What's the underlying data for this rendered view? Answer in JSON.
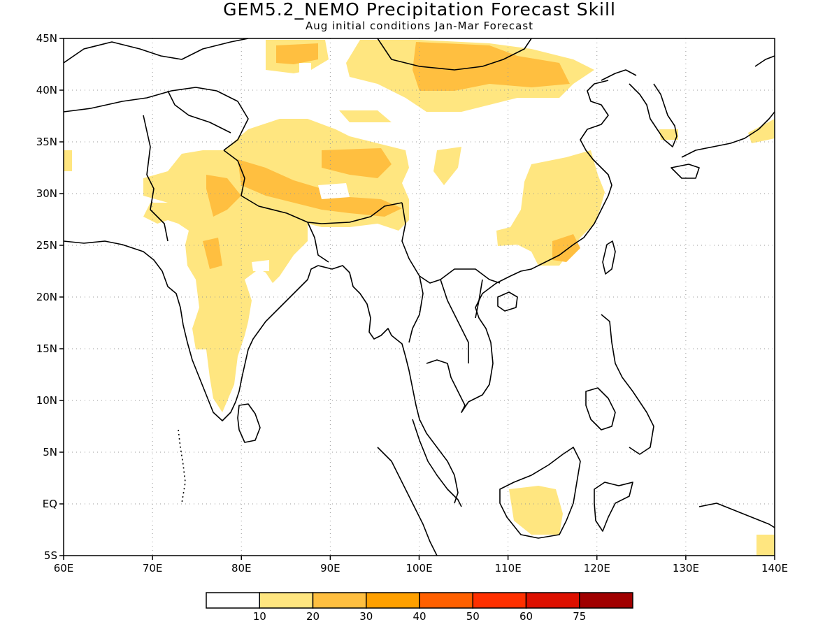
{
  "title": "GEM5.2_NEMO Precipitation Forecast Skill",
  "subtitle": "Aug initial conditions  Jan-Mar Forecast",
  "map": {
    "lon_range": [
      60,
      140
    ],
    "lat_range": [
      -5,
      45
    ],
    "lon_ticks": [
      "60E",
      "70E",
      "80E",
      "90E",
      "100E",
      "110E",
      "120E",
      "130E",
      "140E"
    ],
    "lat_ticks": [
      "45N",
      "40N",
      "35N",
      "30N",
      "25N",
      "20N",
      "15N",
      "10N",
      "5N",
      "EQ",
      "5S"
    ],
    "grid": "dotted"
  },
  "colorbar": {
    "colors": [
      "#ffffff",
      "#ffe680",
      "#ffbf40",
      "#ffa000",
      "#ff6000",
      "#ff3000",
      "#dd1000",
      "#a00000"
    ],
    "labels": [
      "10",
      "20",
      "30",
      "40",
      "50",
      "60",
      "75"
    ]
  }
}
